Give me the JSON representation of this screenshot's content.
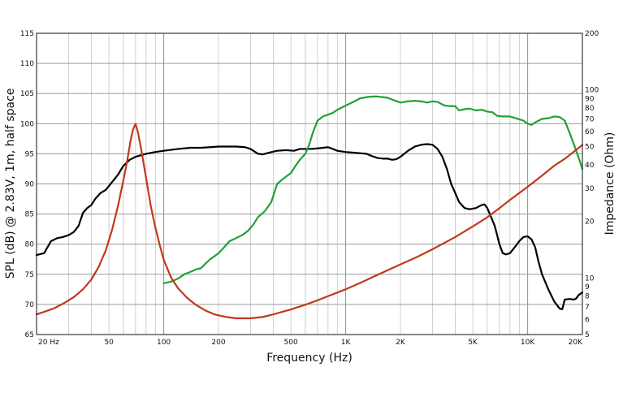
{
  "chart_data": {
    "type": "line",
    "xlabel": "Frequency (Hz)",
    "ylabel": "SPL (dB) @ 2.83V, 1m, half space",
    "y2label": "Impedance (Ohm)",
    "x_scale": "log",
    "xlim": [
      20,
      20000
    ],
    "ylim": [
      65,
      115
    ],
    "y2_scale": "log",
    "y2lim": [
      5,
      200
    ],
    "grid": true,
    "x_ticks": [
      {
        "value": 20,
        "label": "20  Hz"
      },
      {
        "value": 50,
        "label": "50"
      },
      {
        "value": 100,
        "label": "100"
      },
      {
        "value": 200,
        "label": "200"
      },
      {
        "value": 500,
        "label": "500"
      },
      {
        "value": 1000,
        "label": "1K"
      },
      {
        "value": 2000,
        "label": "2K"
      },
      {
        "value": 5000,
        "label": "5K"
      },
      {
        "value": 10000,
        "label": "10K"
      },
      {
        "value": 20000,
        "label": "20K"
      }
    ],
    "y_ticks": [
      "65",
      "70",
      "75",
      "80",
      "85",
      "90",
      "95",
      "100",
      "105",
      "110",
      "115"
    ],
    "y2_ticks": [
      {
        "value": 5,
        "label": "5"
      },
      {
        "value": 6,
        "label": "6"
      },
      {
        "value": 7,
        "label": "7"
      },
      {
        "value": 8,
        "label": "8"
      },
      {
        "value": 9,
        "label": "9"
      },
      {
        "value": 10,
        "label": "10"
      },
      {
        "value": 20,
        "label": "20"
      },
      {
        "value": 30,
        "label": "30"
      },
      {
        "value": 40,
        "label": "40"
      },
      {
        "value": 50,
        "label": "50"
      },
      {
        "value": 60,
        "label": "60"
      },
      {
        "value": 70,
        "label": "70"
      },
      {
        "value": 80,
        "label": "80"
      },
      {
        "value": 90,
        "label": "90"
      },
      {
        "value": 100,
        "label": "100"
      },
      {
        "value": 200,
        "label": "200"
      }
    ],
    "series": [
      {
        "color": "#000000",
        "axis": "left",
        "points": [
          [
            20,
            78.2
          ],
          [
            22,
            78.5
          ],
          [
            24,
            80.5
          ],
          [
            26,
            81.0
          ],
          [
            28,
            81.2
          ],
          [
            30,
            81.5
          ],
          [
            32,
            82.0
          ],
          [
            34,
            83.0
          ],
          [
            36,
            85.2
          ],
          [
            38,
            86.0
          ],
          [
            40,
            86.5
          ],
          [
            42,
            87.5
          ],
          [
            45,
            88.5
          ],
          [
            48,
            89.0
          ],
          [
            52,
            90.3
          ],
          [
            56,
            91.5
          ],
          [
            60,
            93.0
          ],
          [
            65,
            94.0
          ],
          [
            70,
            94.5
          ],
          [
            80,
            95.0
          ],
          [
            90,
            95.3
          ],
          [
            100,
            95.5
          ],
          [
            120,
            95.8
          ],
          [
            140,
            96.0
          ],
          [
            160,
            96.0
          ],
          [
            180,
            96.1
          ],
          [
            200,
            96.2
          ],
          [
            230,
            96.2
          ],
          [
            250,
            96.2
          ],
          [
            280,
            96.1
          ],
          [
            300,
            95.8
          ],
          [
            330,
            95.0
          ],
          [
            350,
            94.9
          ],
          [
            380,
            95.2
          ],
          [
            420,
            95.5
          ],
          [
            470,
            95.6
          ],
          [
            520,
            95.5
          ],
          [
            560,
            95.8
          ],
          [
            600,
            95.8
          ],
          [
            650,
            95.8
          ],
          [
            700,
            95.9
          ],
          [
            750,
            96.0
          ],
          [
            800,
            96.1
          ],
          [
            850,
            95.8
          ],
          [
            900,
            95.5
          ],
          [
            1000,
            95.3
          ],
          [
            1100,
            95.2
          ],
          [
            1200,
            95.1
          ],
          [
            1300,
            95.0
          ],
          [
            1400,
            94.6
          ],
          [
            1500,
            94.3
          ],
          [
            1600,
            94.2
          ],
          [
            1700,
            94.2
          ],
          [
            1800,
            94.0
          ],
          [
            1900,
            94.1
          ],
          [
            2000,
            94.5
          ],
          [
            2200,
            95.5
          ],
          [
            2400,
            96.2
          ],
          [
            2600,
            96.5
          ],
          [
            2800,
            96.6
          ],
          [
            3000,
            96.5
          ],
          [
            3200,
            95.8
          ],
          [
            3400,
            94.5
          ],
          [
            3600,
            92.5
          ],
          [
            3800,
            90.0
          ],
          [
            4000,
            88.5
          ],
          [
            4200,
            87.0
          ],
          [
            4500,
            86.0
          ],
          [
            4800,
            85.8
          ],
          [
            5200,
            86.0
          ],
          [
            5600,
            86.5
          ],
          [
            5800,
            86.6
          ],
          [
            6000,
            86.0
          ],
          [
            6300,
            84.5
          ],
          [
            6600,
            83.0
          ],
          [
            7000,
            80.0
          ],
          [
            7300,
            78.5
          ],
          [
            7600,
            78.3
          ],
          [
            8000,
            78.5
          ],
          [
            8500,
            79.5
          ],
          [
            9000,
            80.5
          ],
          [
            9500,
            81.2
          ],
          [
            10000,
            81.3
          ],
          [
            10500,
            80.8
          ],
          [
            11000,
            79.5
          ],
          [
            11500,
            77.0
          ],
          [
            12000,
            75.0
          ],
          [
            13000,
            72.5
          ],
          [
            14000,
            70.5
          ],
          [
            15000,
            69.3
          ],
          [
            15500,
            69.2
          ],
          [
            16000,
            70.8
          ],
          [
            17000,
            70.9
          ],
          [
            18000,
            70.8
          ],
          [
            18500,
            71.0
          ],
          [
            19000,
            71.5
          ],
          [
            20000,
            72.0
          ]
        ]
      },
      {
        "color": "#22a03a",
        "axis": "left",
        "points": [
          [
            100,
            73.5
          ],
          [
            110,
            73.8
          ],
          [
            120,
            74.3
          ],
          [
            130,
            75.0
          ],
          [
            140,
            75.4
          ],
          [
            150,
            75.8
          ],
          [
            160,
            76.0
          ],
          [
            170,
            76.8
          ],
          [
            180,
            77.5
          ],
          [
            190,
            78.0
          ],
          [
            200,
            78.5
          ],
          [
            215,
            79.5
          ],
          [
            230,
            80.5
          ],
          [
            250,
            81.0
          ],
          [
            270,
            81.5
          ],
          [
            290,
            82.2
          ],
          [
            310,
            83.2
          ],
          [
            330,
            84.5
          ],
          [
            360,
            85.5
          ],
          [
            390,
            87.0
          ],
          [
            420,
            90.0
          ],
          [
            460,
            91.0
          ],
          [
            500,
            91.8
          ],
          [
            530,
            93.0
          ],
          [
            560,
            94.0
          ],
          [
            600,
            95.0
          ],
          [
            630,
            96.5
          ],
          [
            660,
            98.5
          ],
          [
            700,
            100.5
          ],
          [
            750,
            101.2
          ],
          [
            800,
            101.5
          ],
          [
            850,
            101.8
          ],
          [
            900,
            102.3
          ],
          [
            1000,
            103.0
          ],
          [
            1100,
            103.6
          ],
          [
            1200,
            104.2
          ],
          [
            1300,
            104.4
          ],
          [
            1400,
            104.5
          ],
          [
            1500,
            104.5
          ],
          [
            1600,
            104.4
          ],
          [
            1700,
            104.3
          ],
          [
            1800,
            104.0
          ],
          [
            2000,
            103.5
          ],
          [
            2200,
            103.7
          ],
          [
            2400,
            103.8
          ],
          [
            2600,
            103.7
          ],
          [
            2800,
            103.5
          ],
          [
            3000,
            103.7
          ],
          [
            3200,
            103.6
          ],
          [
            3500,
            103.0
          ],
          [
            3800,
            102.9
          ],
          [
            4000,
            102.9
          ],
          [
            4200,
            102.2
          ],
          [
            4500,
            102.4
          ],
          [
            4800,
            102.5
          ],
          [
            5200,
            102.2
          ],
          [
            5600,
            102.3
          ],
          [
            6000,
            102.0
          ],
          [
            6400,
            101.9
          ],
          [
            6800,
            101.3
          ],
          [
            7200,
            101.2
          ],
          [
            8000,
            101.2
          ],
          [
            8800,
            100.8
          ],
          [
            9500,
            100.5
          ],
          [
            10000,
            100.0
          ],
          [
            10500,
            99.8
          ],
          [
            11000,
            100.2
          ],
          [
            12000,
            100.8
          ],
          [
            13000,
            100.9
          ],
          [
            14000,
            101.2
          ],
          [
            15000,
            101.1
          ],
          [
            16000,
            100.5
          ],
          [
            17000,
            98.5
          ],
          [
            18000,
            96.5
          ],
          [
            19000,
            94.5
          ],
          [
            20000,
            92.5
          ]
        ]
      },
      {
        "color": "#c0391b",
        "axis": "right",
        "points": [
          [
            20,
            6.4
          ],
          [
            22,
            6.6
          ],
          [
            25,
            6.9
          ],
          [
            28,
            7.3
          ],
          [
            32,
            7.9
          ],
          [
            36,
            8.7
          ],
          [
            40,
            9.8
          ],
          [
            44,
            11.5
          ],
          [
            48,
            14.0
          ],
          [
            52,
            18.0
          ],
          [
            56,
            24.0
          ],
          [
            60,
            33.0
          ],
          [
            63,
            42.0
          ],
          [
            66,
            55.0
          ],
          [
            68,
            62.0
          ],
          [
            70,
            66.0
          ],
          [
            72,
            60.0
          ],
          [
            75,
            49.0
          ],
          [
            80,
            34.0
          ],
          [
            85,
            24.0
          ],
          [
            90,
            18.5
          ],
          [
            95,
            15.0
          ],
          [
            100,
            12.5
          ],
          [
            110,
            10.0
          ],
          [
            120,
            8.8
          ],
          [
            135,
            7.8
          ],
          [
            150,
            7.2
          ],
          [
            170,
            6.7
          ],
          [
            190,
            6.4
          ],
          [
            220,
            6.2
          ],
          [
            250,
            6.1
          ],
          [
            300,
            6.1
          ],
          [
            350,
            6.2
          ],
          [
            400,
            6.4
          ],
          [
            500,
            6.8
          ],
          [
            600,
            7.2
          ],
          [
            700,
            7.6
          ],
          [
            800,
            8.0
          ],
          [
            1000,
            8.7
          ],
          [
            1200,
            9.4
          ],
          [
            1500,
            10.4
          ],
          [
            2000,
            11.8
          ],
          [
            2500,
            13.0
          ],
          [
            3000,
            14.2
          ],
          [
            4000,
            16.5
          ],
          [
            5000,
            18.8
          ],
          [
            6000,
            21.0
          ],
          [
            7000,
            23.5
          ],
          [
            8000,
            26.0
          ],
          [
            10000,
            30.5
          ],
          [
            12000,
            35.0
          ],
          [
            14000,
            39.5
          ],
          [
            16000,
            43.0
          ],
          [
            18000,
            47.0
          ],
          [
            20000,
            51.0
          ]
        ]
      }
    ]
  }
}
